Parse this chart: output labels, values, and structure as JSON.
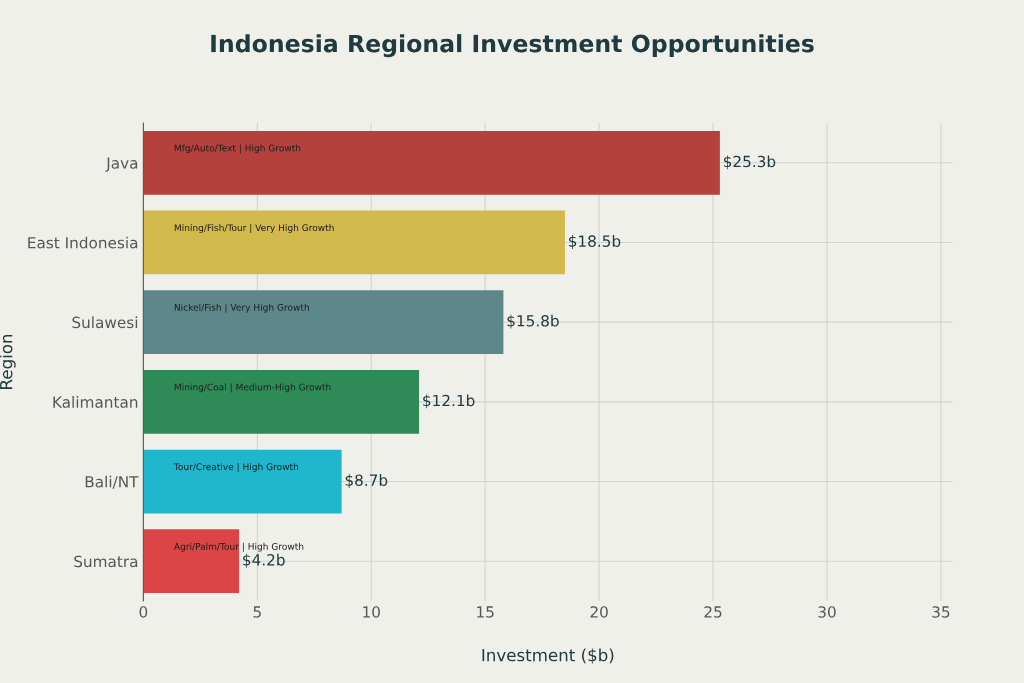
{
  "chart_data": {
    "type": "bar",
    "orientation": "horizontal",
    "title": "Indonesia Regional Investment Opportunities",
    "xlabel": "Investment ($b)",
    "ylabel": "Region",
    "categories": [
      "Java",
      "East Indonesia",
      "Sulawesi",
      "Kalimantan",
      "Bali/NT",
      "Sumatra"
    ],
    "values": [
      25.3,
      18.5,
      15.8,
      12.1,
      8.7,
      4.2
    ],
    "colors": [
      "#b5413c",
      "#d2b94b",
      "#5e878c",
      "#2e8b57",
      "#20b7cc",
      "#db4545"
    ],
    "value_labels": [
      "$25.3b",
      "$18.5b",
      "$15.8b",
      "$12.1b",
      "$8.7b",
      "$4.2b"
    ],
    "annotations": [
      "Mfg/Auto/Text | High Growth",
      "Mining/Fish/Tour | Very High Growth",
      "Nickel/Fish | Very High Growth",
      "Mining/Coal | Medium-High Growth",
      "Tour/Creative | High Growth",
      "Agri/Palm/Tour | High Growth"
    ],
    "xlim": [
      0,
      35.5
    ],
    "xticks": [
      0,
      5,
      10,
      15,
      20,
      25,
      30,
      35
    ],
    "grid": true,
    "legend": false
  }
}
